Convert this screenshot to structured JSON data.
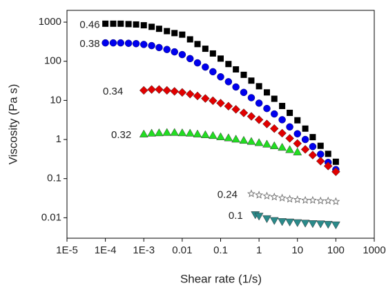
{
  "chart_data": {
    "type": "scatter",
    "xscale": "log",
    "yscale": "log",
    "xlabel": "Shear rate (1/s)",
    "ylabel": "Viscosity (Pa s)",
    "xlim": [
      1e-05,
      1000
    ],
    "ylim": [
      0.003,
      2000
    ],
    "xticks": [
      {
        "value": 1e-05,
        "label": "1E-5"
      },
      {
        "value": 0.0001,
        "label": "1E-4"
      },
      {
        "value": 0.001,
        "label": "1E-3"
      },
      0.01,
      0.1,
      1,
      10,
      100,
      1000
    ],
    "yticks": [
      0.01,
      0.1,
      1,
      10,
      100,
      1000
    ],
    "series": [
      {
        "name": "0.46",
        "color": "#000000",
        "marker": "square",
        "x": [
          0.0001,
          0.00016,
          0.00025,
          0.0004,
          0.00063,
          0.001,
          0.0016,
          0.0025,
          0.004,
          0.0063,
          0.01,
          0.016,
          0.025,
          0.04,
          0.063,
          0.1,
          0.16,
          0.25,
          0.4,
          0.63,
          1,
          1.6,
          2.5,
          4,
          6.3,
          10,
          16,
          25,
          40,
          63,
          100
        ],
        "values": [
          912,
          912,
          912,
          891,
          871,
          832,
          759,
          676,
          589,
          525,
          479,
          363,
          275,
          209,
          158,
          117,
          85,
          62,
          45,
          32,
          23,
          16,
          11,
          7.2,
          4.8,
          3.1,
          1.9,
          1.15,
          0.69,
          0.43,
          0.27
        ]
      },
      {
        "name": "0.38",
        "color": "#0000ee",
        "marker": "circle",
        "x": [
          0.0001,
          0.00016,
          0.00025,
          0.0004,
          0.00063,
          0.001,
          0.0016,
          0.0025,
          0.004,
          0.0063,
          0.01,
          0.016,
          0.025,
          0.04,
          0.063,
          0.1,
          0.16,
          0.25,
          0.4,
          0.63,
          1,
          1.6,
          2.5,
          4,
          6.3,
          10,
          16,
          25,
          40,
          63,
          100
        ],
        "values": [
          295,
          295,
          295,
          288,
          282,
          269,
          251,
          224,
          200,
          174,
          148,
          117,
          91,
          71,
          54,
          40,
          30,
          22,
          16,
          11.7,
          8.5,
          6.2,
          4.5,
          3.2,
          2.1,
          1.4,
          1.0,
          0.66,
          0.42,
          0.26,
          0.17
        ]
      },
      {
        "name": "0.34",
        "color": "#e00000",
        "marker": "diamond",
        "x": [
          0.001,
          0.0016,
          0.0025,
          0.004,
          0.0063,
          0.01,
          0.016,
          0.025,
          0.04,
          0.063,
          0.1,
          0.16,
          0.25,
          0.4,
          0.63,
          1,
          1.6,
          2.5,
          4,
          6.3,
          10,
          16,
          25,
          40,
          63,
          100
        ],
        "values": [
          18,
          19,
          19,
          18,
          17,
          16,
          14.5,
          13,
          11.2,
          9.8,
          8.5,
          7.1,
          5.9,
          4.8,
          3.9,
          3.2,
          2.5,
          1.9,
          1.45,
          1.07,
          0.79,
          0.56,
          0.4,
          0.28,
          0.21,
          0.15
        ]
      },
      {
        "name": "0.32",
        "color": "#22dd22",
        "marker": "triangle-up",
        "x": [
          0.001,
          0.0016,
          0.0025,
          0.004,
          0.0063,
          0.01,
          0.016,
          0.025,
          0.04,
          0.063,
          0.1,
          0.16,
          0.25,
          0.4,
          0.63,
          1,
          1.6,
          2.5,
          4,
          6.3,
          10
        ],
        "values": [
          1.38,
          1.45,
          1.48,
          1.51,
          1.51,
          1.48,
          1.45,
          1.38,
          1.32,
          1.26,
          1.17,
          1.1,
          1.02,
          0.95,
          0.89,
          0.83,
          0.76,
          0.69,
          0.63,
          0.55,
          0.48
        ]
      },
      {
        "name": "0.24",
        "color": "#777777",
        "marker": "star",
        "x": [
          0.63,
          1,
          1.6,
          2.5,
          4,
          6.3,
          10,
          16,
          25,
          40,
          63,
          100
        ],
        "values": [
          0.041,
          0.038,
          0.036,
          0.034,
          0.032,
          0.03,
          0.029,
          0.028,
          0.028,
          0.027,
          0.027,
          0.026
        ]
      },
      {
        "name": "0.1",
        "color": "#2a8a8a",
        "marker": "triangle-down",
        "x": [
          0.8,
          1,
          1.6,
          2.5,
          4,
          6.3,
          10,
          16,
          25,
          40,
          63,
          100
        ],
        "values": [
          0.012,
          0.011,
          0.0095,
          0.0085,
          0.008,
          0.0078,
          0.0075,
          0.0073,
          0.0071,
          0.007,
          0.0068,
          0.0066
        ]
      }
    ]
  }
}
